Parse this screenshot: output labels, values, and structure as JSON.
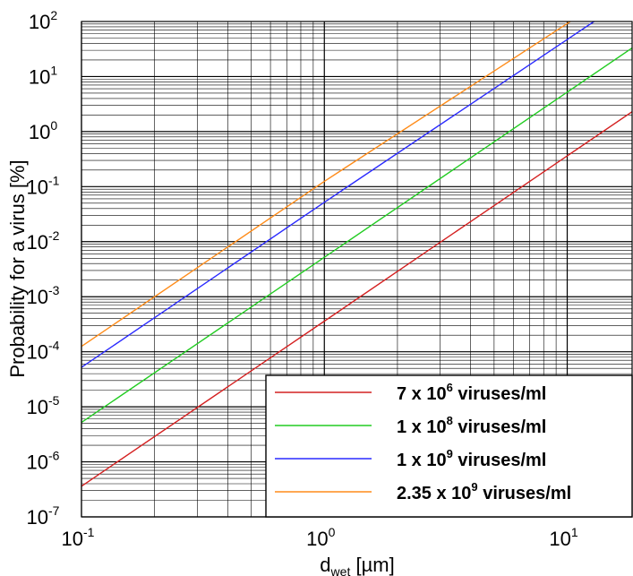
{
  "chart_data": {
    "type": "line",
    "title": "",
    "xlabel": {
      "main": "d",
      "sub": "wet",
      "unit": " [µm]"
    },
    "ylabel": "Probability for a virus [%]",
    "xscale": "log",
    "yscale": "log",
    "xlim": [
      0.1,
      18.5
    ],
    "ylim": [
      1e-07,
      100
    ],
    "grid": true,
    "legend_position": "bottom-right",
    "x_ticks": [
      {
        "base": "10",
        "exp": "-1"
      },
      {
        "base": "10",
        "exp": "0"
      },
      {
        "base": "10",
        "exp": "1"
      }
    ],
    "y_ticks": [
      {
        "base": "10",
        "exp": "-7"
      },
      {
        "base": "10",
        "exp": "-6"
      },
      {
        "base": "10",
        "exp": "-5"
      },
      {
        "base": "10",
        "exp": "-4"
      },
      {
        "base": "10",
        "exp": "-3"
      },
      {
        "base": "10",
        "exp": "-2"
      },
      {
        "base": "10",
        "exp": "-1"
      },
      {
        "base": "10",
        "exp": "0"
      },
      {
        "base": "10",
        "exp": "1"
      },
      {
        "base": "10",
        "exp": "2"
      }
    ],
    "series": [
      {
        "name_parts": [
          "7 x 10",
          "6",
          " viruses/ml"
        ],
        "color": "#d42020",
        "x": [
          0.1,
          1,
          18.5
        ],
        "y": [
          3.6e-07,
          0.00036,
          2.3
        ]
      },
      {
        "name_parts": [
          "1 x 10",
          "8",
          " viruses/ml"
        ],
        "color": "#22cc22",
        "x": [
          0.1,
          1,
          18.5
        ],
        "y": [
          5.2e-06,
          0.0052,
          33
        ]
      },
      {
        "name_parts": [
          "1 x 10",
          "9",
          " viruses/ml"
        ],
        "color": "#2a2aff",
        "x": [
          0.1,
          1,
          12.9
        ],
        "y": [
          5.2e-05,
          0.052,
          100
        ]
      },
      {
        "name_parts": [
          "2.35 x 10",
          "9",
          " viruses/ml"
        ],
        "color": "#ff8c1a",
        "x": [
          0.1,
          1,
          10.3
        ],
        "y": [
          0.000125,
          0.125,
          100
        ]
      }
    ]
  }
}
